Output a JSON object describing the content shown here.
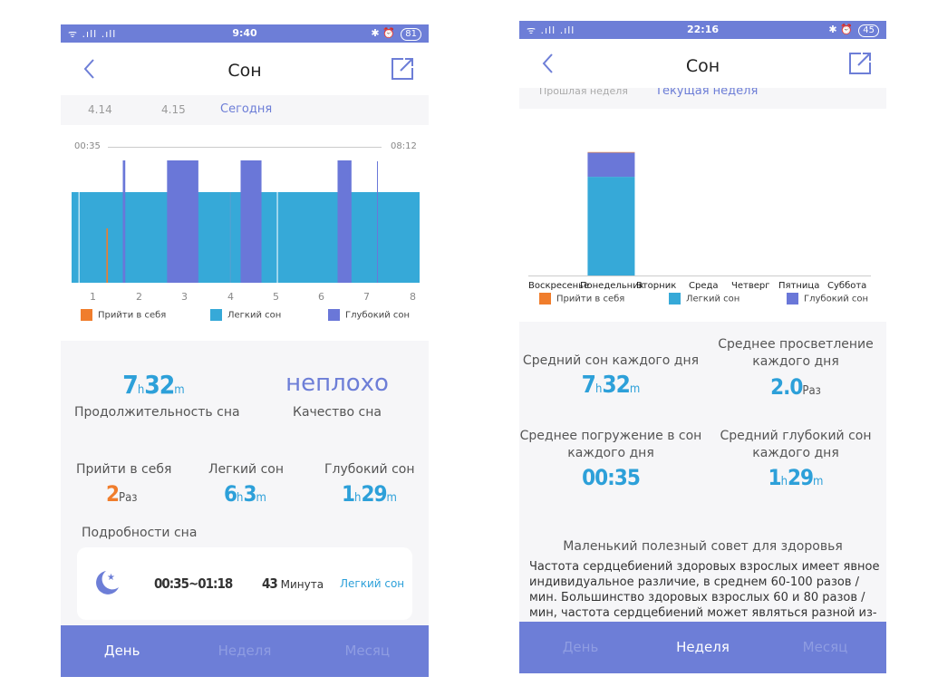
{
  "colors": {
    "accent": "#6d7ed7",
    "awake": "#f07d2c",
    "light": "#36a9d8",
    "deep": "#6a77d8"
  },
  "left": {
    "status": {
      "signal": "ᯤ .ıll .ıll",
      "time": "9:40",
      "battery": "81",
      "right_icons": "✱ ⏰"
    },
    "title": "Сон",
    "date_tabs": [
      "4.14",
      "4.15",
      "Сегодня"
    ],
    "chart": {
      "start_time": "00:35",
      "end_time": "08:12",
      "x_ticks": [
        "1",
        "2",
        "3",
        "4",
        "5",
        "6",
        "7",
        "8"
      ]
    },
    "chart_data": {
      "type": "bar",
      "x": [
        1,
        8
      ],
      "series": [
        {
          "name": "Прийти в себя",
          "values": [
            [
              1.7,
              1.73,
              0.6
            ]
          ]
        },
        {
          "name": "Легкий сон",
          "values": [
            [
              1.0,
              8.0,
              1.0
            ]
          ]
        },
        {
          "name": "Глубокий сон",
          "values": [
            [
              2.03,
              2.08,
              1.35
            ],
            [
              2.92,
              3.55,
              1.35
            ],
            [
              4.4,
              4.82,
              1.35
            ],
            [
              6.35,
              6.63,
              1.35
            ]
          ]
        }
      ]
    },
    "legend": {
      "awake": "Прийти в себя",
      "light": "Легкий сон",
      "deep": "Глубокий сон"
    },
    "summary": {
      "duration_h": "7",
      "duration_m": "32",
      "h_unit": "h",
      "m_unit": "m",
      "duration_label": "Продолжительность сна",
      "quality_value": "неплохо",
      "quality_label": "Качество сна"
    },
    "stats": {
      "awake_label": "Прийти в себя",
      "awake_value": "2",
      "awake_unit": "Раз",
      "light_label": "Легкий сон",
      "light_h": "6",
      "light_m": "3",
      "deep_label": "Глубокий сон",
      "deep_h": "1",
      "deep_m": "29"
    },
    "details_title": "Подробности сна",
    "detail_row": {
      "time": "00:35~01:18",
      "minutes": "43",
      "minutes_unit": "Минута",
      "type": "Легкий сон"
    },
    "bottom_tabs": [
      "День",
      "Неделя",
      "Месяц"
    ]
  },
  "right": {
    "status": {
      "signal": "ᯤ .ıll .ıll",
      "time": "22:16",
      "battery": "45",
      "right_icons": "✱ ⏰"
    },
    "title": "Сон",
    "week_tabs": [
      "Прошлая неделя",
      "Текущая неделя"
    ],
    "x_labels": [
      "Воскресенье",
      "Понедельник",
      "Вторник",
      "Среда",
      "Четверг",
      "Пятница",
      "Суббота"
    ],
    "chart_data": {
      "type": "bar",
      "categories": [
        "Воскресенье",
        "Понедельник",
        "Вторник",
        "Среда",
        "Четверг",
        "Пятница",
        "Суббота"
      ],
      "series": [
        {
          "name": "Прийти в себя",
          "values": [
            0,
            2,
            0,
            0,
            0,
            0,
            0
          ]
        },
        {
          "name": "Легкий сон",
          "values": [
            0,
            363,
            0,
            0,
            0,
            0,
            0
          ]
        },
        {
          "name": "Глубокий сон",
          "values": [
            0,
            89,
            0,
            0,
            0,
            0,
            0
          ]
        }
      ]
    },
    "legend": {
      "awake": "Прийти в себя",
      "light": "Легкий сон",
      "deep": "Глубокий сон"
    },
    "avg": {
      "sleep_label": "Средний сон каждого дня",
      "sleep_h": "7",
      "sleep_m": "32",
      "awake_label": "Среднее просветление каждого дня",
      "awake_value": "2.0",
      "awake_unit": "Раз",
      "onset_label": "Среднее погружение в сон каждого дня",
      "onset_value": "00:35",
      "deep_label": "Средний глубокий сон каждого дня",
      "deep_h": "1",
      "deep_m": "29",
      "h_unit": "h",
      "m_unit": "m"
    },
    "tip_title": "Маленький полезный совет для здоровья",
    "tip_text": "Частота сердцебиений здоровых взрослых имеет явное индивидуальное различие, в среднем 60-100 разов / мин. Большинство здоровых взрослых 60 и 80 разов / мин, частота сердцебиений может являться разной из-за возраста, пола и других обстановок тела",
    "bottom_tabs": [
      "День",
      "Неделя",
      "Месяц"
    ]
  }
}
